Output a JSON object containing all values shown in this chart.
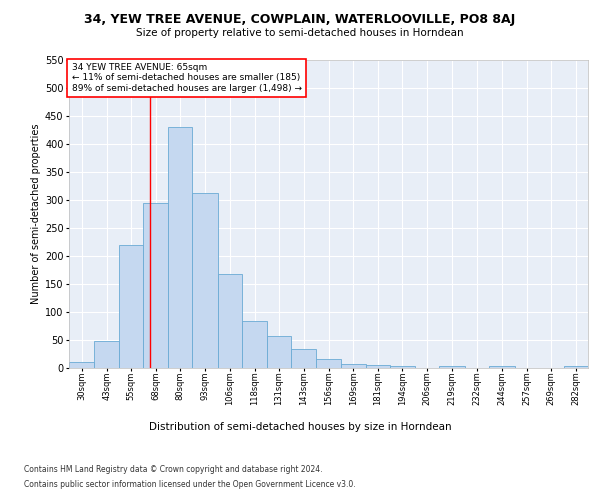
{
  "title1": "34, YEW TREE AVENUE, COWPLAIN, WATERLOOVILLE, PO8 8AJ",
  "title2": "Size of property relative to semi-detached houses in Horndean",
  "xlabel": "Distribution of semi-detached houses by size in Horndean",
  "ylabel": "Number of semi-detached properties",
  "bins": [
    "30sqm",
    "43sqm",
    "55sqm",
    "68sqm",
    "80sqm",
    "93sqm",
    "106sqm",
    "118sqm",
    "131sqm",
    "143sqm",
    "156sqm",
    "169sqm",
    "181sqm",
    "194sqm",
    "206sqm",
    "219sqm",
    "232sqm",
    "244sqm",
    "257sqm",
    "269sqm",
    "282sqm"
  ],
  "values": [
    10,
    48,
    220,
    295,
    430,
    313,
    168,
    83,
    57,
    33,
    16,
    7,
    4,
    2,
    0,
    3,
    0,
    2,
    0,
    0,
    3
  ],
  "bar_color": "#c5d8f0",
  "bar_edge_color": "#6aaad4",
  "annotation_line1": "34 YEW TREE AVENUE: 65sqm",
  "annotation_line2": "← 11% of semi-detached houses are smaller (185)",
  "annotation_line3": "89% of semi-detached houses are larger (1,498) →",
  "red_line_x": 65,
  "bin_edges": [
    23.5,
    36.5,
    49,
    61.5,
    74,
    86.5,
    99.5,
    112,
    124.5,
    137,
    149.5,
    162.5,
    175,
    187.5,
    200,
    212.5,
    225.5,
    238,
    251,
    263.5,
    276,
    288.5
  ],
  "ylim": [
    0,
    550
  ],
  "yticks": [
    0,
    50,
    100,
    150,
    200,
    250,
    300,
    350,
    400,
    450,
    500,
    550
  ],
  "footer1": "Contains HM Land Registry data © Crown copyright and database right 2024.",
  "footer2": "Contains public sector information licensed under the Open Government Licence v3.0.",
  "background_color": "#e8eef7",
  "grid_color": "#ffffff"
}
